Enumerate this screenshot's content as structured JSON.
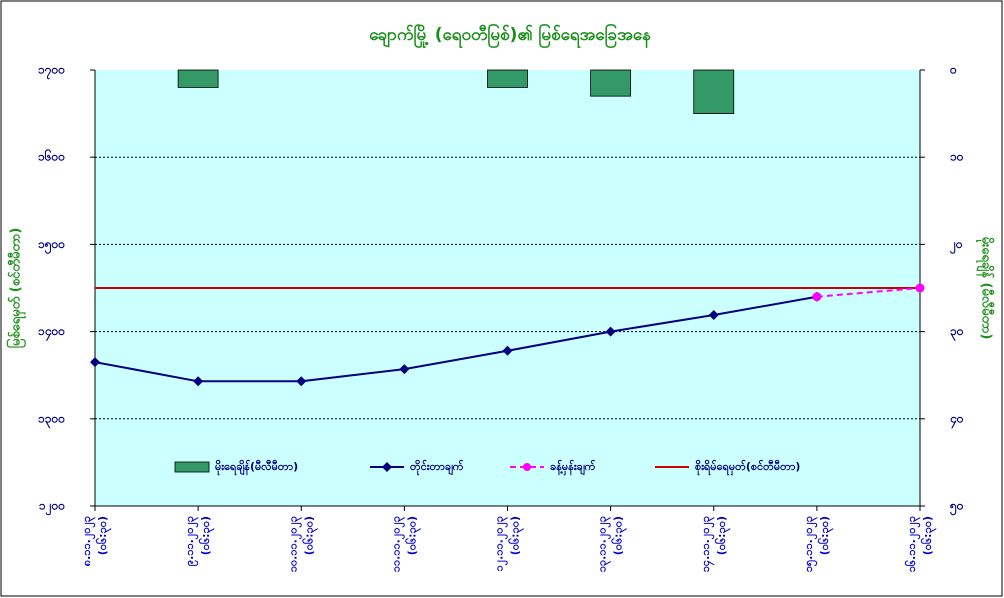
{
  "chart_data": {
    "type": "combo",
    "title": "ချောက်မြို့ (ရေဝတီမြစ်)၏ မြစ်ရေအခြေအနေ",
    "ylabel": "မြစ်ရေမှတ် (စင်တီမီတာ)",
    "y2label": "မိုးရေချိန် (မီလီမီတာ)",
    "categories": [
      "၈.၁၁.၂၀၂၃",
      "၉.၁၁.၂၀၂၃",
      "၁၀.၁၁.၂၀၂၃",
      "၁၁.၁၁.၂၀၂၃",
      "၁၂.၁၁.၂၀၂၃",
      "၁၃.၁၁.၂၀၂၃",
      "၁၄.၁၁.၂၀၂၃",
      "၁၅.၁၁.၂၀၂၃",
      "၁၆.၁၁.၂၀၂၃"
    ],
    "category_times": [
      "(၀၆:၃၀)",
      "(၀၆:၃၀)",
      "(၀၆:၃၀)",
      "(၀၆:၃၀)",
      "(၀၆:၃၀)",
      "(၀၆:၃၀)",
      "(၀၆:၃၀)",
      "(၀၆:၃၀)",
      "(၀၆:၃၀)"
    ],
    "ylim": [
      1200,
      1700
    ],
    "yticks": [
      {
        "value": 1200,
        "label": "၁၂၀၀"
      },
      {
        "value": 1300,
        "label": "၁၃၀၀"
      },
      {
        "value": 1400,
        "label": "၁၄၀၀"
      },
      {
        "value": 1500,
        "label": "၁၅၀၀"
      },
      {
        "value": 1600,
        "label": "၁၆၀၀"
      },
      {
        "value": 1700,
        "label": "၁၇၀၀"
      }
    ],
    "y2lim": [
      0,
      50
    ],
    "y2_inverted": true,
    "y2ticks": [
      {
        "value": 0,
        "label": "၀"
      },
      {
        "value": 10,
        "label": "၁၀"
      },
      {
        "value": 20,
        "label": "၂၀"
      },
      {
        "value": 30,
        "label": "၃၀"
      },
      {
        "value": 40,
        "label": "၄၀"
      },
      {
        "value": 50,
        "label": "၅၀"
      }
    ],
    "grid": true,
    "series": [
      {
        "name": "မိုးရေချိန်(မီလီမီတာ)",
        "kind": "bar",
        "axis": "y2",
        "color": "#339966",
        "values": [
          null,
          2,
          null,
          null,
          2,
          3,
          5,
          null,
          null
        ]
      },
      {
        "name": "တိုင်းတာချက်",
        "kind": "line",
        "color": "#000080",
        "marker": "diamond",
        "values": [
          1365,
          1343,
          1343,
          1357,
          1378,
          1400,
          1419,
          1440,
          null
        ]
      },
      {
        "name": "ခန့်မှန်းချက်",
        "kind": "line",
        "color": "#ff00ff",
        "dashed": true,
        "marker": "circle",
        "values": [
          null,
          null,
          null,
          null,
          null,
          null,
          null,
          1440,
          1450
        ]
      },
      {
        "name": "စိုးရိမ်ရေမှတ်(စင်တီမီတာ)",
        "kind": "hline",
        "color": "#cc0000",
        "value": 1450
      }
    ]
  }
}
